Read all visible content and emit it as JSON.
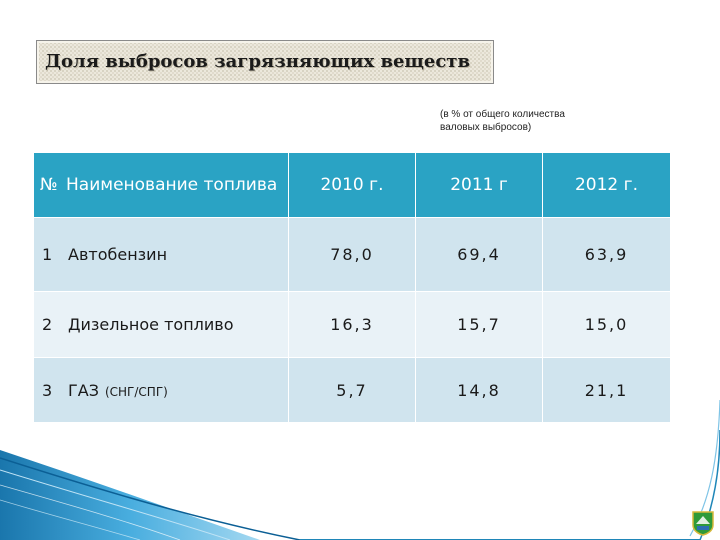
{
  "title": "Доля выбросов загрязняющих веществ",
  "note": [
    "(в % от общего количества",
    "валовых выбросов)"
  ],
  "table": {
    "headers": [
      "№",
      "Наименование топлива",
      "2010 г.",
      "2011 г",
      "2012 г."
    ],
    "rows": [
      {
        "num": "1",
        "name": "Автобензин",
        "sub": "",
        "values": [
          "78,0",
          "69,4",
          "63,9"
        ]
      },
      {
        "num": "2",
        "name": "Дизельное топливо",
        "sub": "",
        "values": [
          "16,3",
          "15,7",
          "15,0"
        ]
      },
      {
        "num": "3",
        "name": "ГАЗ",
        "sub": "(СНГ/СПГ)",
        "values": [
          "5,7",
          "14,8",
          "21,1"
        ]
      }
    ]
  },
  "colors": {
    "header_bg": "#2aa3c4",
    "row_odd": "#d0e4ee",
    "row_even": "#e9f2f7",
    "decoration": "#1f86b8"
  },
  "decoration": {
    "bottom_left": "blue-swoosh-graphic",
    "bottom_right": "emblem-icon"
  }
}
